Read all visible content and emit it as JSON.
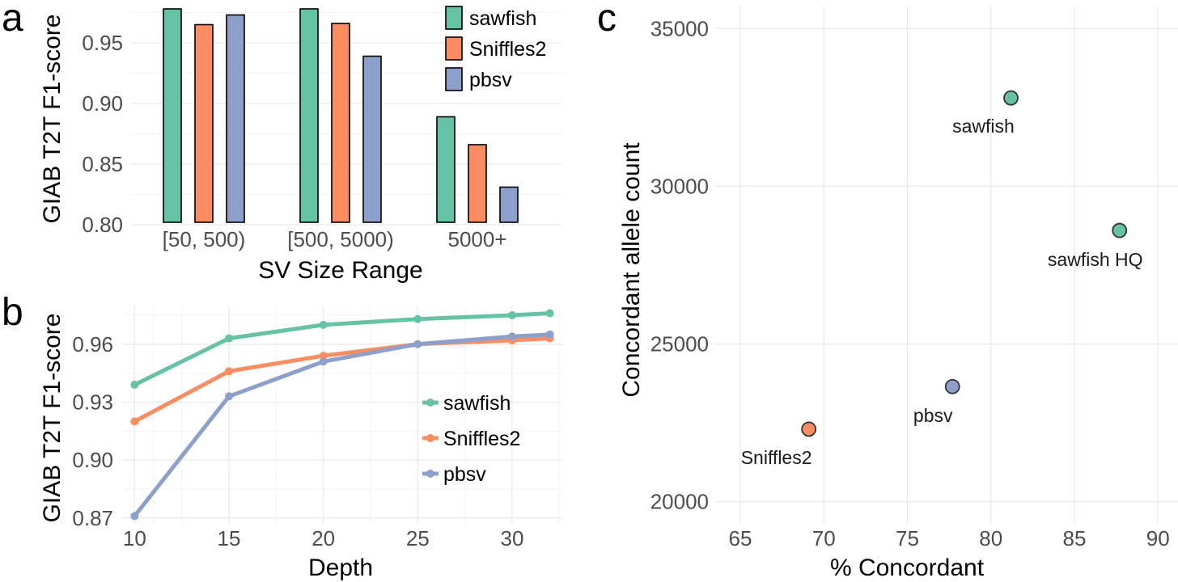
{
  "colors": {
    "sawfish": "#66c2a5",
    "Sniffles2": "#fc8d62",
    "pbsv": "#8da0cb",
    "grid": "#ebebeb"
  },
  "chart_data": [
    {
      "panel": "a",
      "type": "bar",
      "categories": [
        "[50, 500)",
        "[500, 5000)",
        "5000+"
      ],
      "series": [
        {
          "name": "sawfish",
          "values": [
            0.978,
            0.978,
            0.889
          ]
        },
        {
          "name": "Sniffles2",
          "values": [
            0.965,
            0.966,
            0.866
          ]
        },
        {
          "name": "pbsv",
          "values": [
            0.973,
            0.939,
            0.831
          ]
        }
      ],
      "xlabel": "SV Size Range",
      "ylabel": "GIAB T2T F1-score",
      "ylim": [
        0.8,
        0.98
      ],
      "yticks": [
        "0.80",
        "0.85",
        "0.90",
        "0.95"
      ],
      "legend": "top-right"
    },
    {
      "panel": "b",
      "type": "line",
      "x": [
        10,
        15,
        20,
        25,
        30,
        32
      ],
      "series": [
        {
          "name": "sawfish",
          "values": [
            0.939,
            0.963,
            0.97,
            0.973,
            0.975,
            0.976
          ]
        },
        {
          "name": "Sniffles2",
          "values": [
            0.92,
            0.946,
            0.954,
            0.96,
            0.962,
            0.963
          ]
        },
        {
          "name": "pbsv",
          "values": [
            0.871,
            0.933,
            0.951,
            0.96,
            0.964,
            0.965
          ]
        }
      ],
      "xlabel": "Depth",
      "ylabel": "GIAB T2T F1-score",
      "xlim": [
        9.3,
        32.7
      ],
      "ylim": [
        0.867,
        0.98
      ],
      "xticks": [
        "10",
        "15",
        "20",
        "25",
        "30"
      ],
      "yticks": [
        "0.87",
        "0.90",
        "0.93",
        "0.96"
      ],
      "legend": "right"
    },
    {
      "panel": "c",
      "type": "scatter",
      "points": [
        {
          "label": "sawfish",
          "x": 81.2,
          "y": 32800,
          "color_key": "sawfish"
        },
        {
          "label": "sawfish HQ",
          "x": 87.7,
          "y": 28600,
          "color_key": "sawfish"
        },
        {
          "label": "pbsv",
          "x": 77.7,
          "y": 23650,
          "color_key": "pbsv"
        },
        {
          "label": "Sniffles2",
          "x": 69.1,
          "y": 22300,
          "color_key": "Sniffles2"
        }
      ],
      "xlabel": "% Concordant",
      "ylabel": "Concordant allele count",
      "xlim": [
        63.5,
        91.2
      ],
      "ylim": [
        19300,
        35700
      ],
      "xticks": [
        "65",
        "70",
        "75",
        "80",
        "85",
        "90"
      ],
      "yticks": [
        "20000",
        "25000",
        "30000",
        "35000"
      ]
    }
  ]
}
